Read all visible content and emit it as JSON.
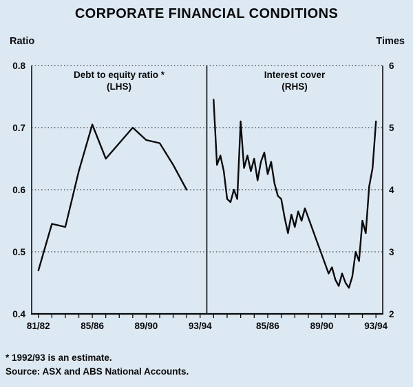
{
  "title": "CORPORATE FINANCIAL CONDITIONS",
  "left_axis": {
    "unit": "Ratio",
    "min": 0.4,
    "max": 0.8,
    "ticks": [
      0.8,
      0.7,
      0.6,
      0.5,
      0.4
    ]
  },
  "right_axis": {
    "unit": "Times",
    "min": 2,
    "max": 6,
    "ticks": [
      6,
      5,
      4,
      3,
      2
    ]
  },
  "footnotes": [
    "* 1992/93 is an estimate.",
    "Source: ASX and ABS National Accounts."
  ],
  "chart_data": [
    {
      "type": "line",
      "name": "Debt to equity ratio",
      "annotation": "Debt to equity ratio *",
      "annotation_sub": "(LHS)",
      "panel": "left",
      "ylabel": "Ratio",
      "ylim": [
        0.4,
        0.8
      ],
      "grid": "dotted horizontal at 0.5, 0.6, 0.7, 0.8",
      "x_step": 1,
      "x": [
        "81/82",
        "82/83",
        "83/84",
        "84/85",
        "85/86",
        "86/87",
        "87/88",
        "88/89",
        "89/90",
        "90/91",
        "91/92",
        "92/93"
      ],
      "values": [
        0.47,
        0.545,
        0.54,
        0.63,
        0.705,
        0.65,
        0.675,
        0.7,
        0.68,
        0.675,
        0.64,
        0.6
      ],
      "x_ticks": [
        {
          "label": "81/82",
          "pos": 0
        },
        {
          "label": "85/86",
          "pos": 4
        },
        {
          "label": "89/90",
          "pos": 8
        },
        {
          "label": "93/94",
          "pos": 12
        }
      ]
    },
    {
      "type": "line",
      "name": "Interest cover",
      "annotation": "Interest cover",
      "annotation_sub": "(RHS)",
      "panel": "right",
      "ylabel": "Times",
      "ylim": [
        2,
        6
      ],
      "grid": "dotted horizontal at 3, 4, 5, 6",
      "x_step": 0.25,
      "x_start": "81/82 quarterly",
      "values": [
        5.45,
        4.4,
        4.55,
        4.3,
        3.85,
        3.8,
        4.0,
        3.85,
        5.1,
        4.35,
        4.55,
        4.3,
        4.5,
        4.15,
        4.45,
        4.6,
        4.25,
        4.45,
        4.1,
        3.9,
        3.85,
        3.55,
        3.3,
        3.6,
        3.4,
        3.65,
        3.5,
        3.7,
        3.55,
        3.4,
        3.25,
        3.1,
        2.95,
        2.8,
        2.65,
        2.75,
        2.55,
        2.45,
        2.65,
        2.5,
        2.42,
        2.6,
        3.0,
        2.85,
        3.5,
        3.3,
        4.05,
        4.35,
        5.1
      ],
      "x_ticks": [
        {
          "label": "85/86",
          "pos": 4
        },
        {
          "label": "89/90",
          "pos": 8
        },
        {
          "label": "93/94",
          "pos": 12
        }
      ]
    }
  ]
}
